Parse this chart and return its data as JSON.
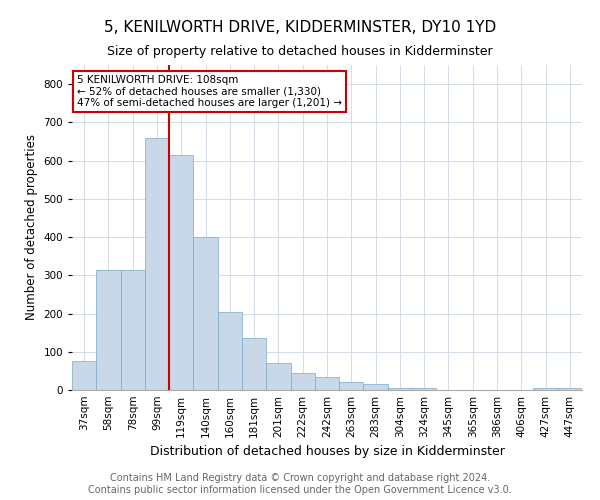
{
  "title": "5, KENILWORTH DRIVE, KIDDERMINSTER, DY10 1YD",
  "subtitle": "Size of property relative to detached houses in Kidderminster",
  "xlabel": "Distribution of detached houses by size in Kidderminster",
  "ylabel": "Number of detached properties",
  "footer_line1": "Contains HM Land Registry data © Crown copyright and database right 2024.",
  "footer_line2": "Contains public sector information licensed under the Open Government Licence v3.0.",
  "annotation_line1": "5 KENILWORTH DRIVE: 108sqm",
  "annotation_line2": "← 52% of detached houses are smaller (1,330)",
  "annotation_line3": "47% of semi-detached houses are larger (1,201) →",
  "bar_labels": [
    "37sqm",
    "58sqm",
    "78sqm",
    "99sqm",
    "119sqm",
    "140sqm",
    "160sqm",
    "181sqm",
    "201sqm",
    "222sqm",
    "242sqm",
    "263sqm",
    "283sqm",
    "304sqm",
    "324sqm",
    "345sqm",
    "365sqm",
    "386sqm",
    "406sqm",
    "427sqm",
    "447sqm"
  ],
  "bar_heights": [
    75,
    315,
    315,
    660,
    615,
    400,
    205,
    135,
    70,
    45,
    35,
    20,
    15,
    5,
    5,
    0,
    0,
    0,
    0,
    5,
    5
  ],
  "bar_color": "#c8d8e8",
  "bar_edge_color": "#7aaac8",
  "red_line_x": 4.0,
  "red_line_color": "#cc0000",
  "ylim": [
    0,
    850
  ],
  "yticks": [
    0,
    100,
    200,
    300,
    400,
    500,
    600,
    700,
    800
  ],
  "background_color": "#ffffff",
  "grid_color": "#ccd8e4",
  "title_fontsize": 11,
  "subtitle_fontsize": 9,
  "xlabel_fontsize": 9,
  "ylabel_fontsize": 8.5,
  "tick_fontsize": 7.5,
  "footer_fontsize": 7,
  "annotation_fontsize": 7.5
}
